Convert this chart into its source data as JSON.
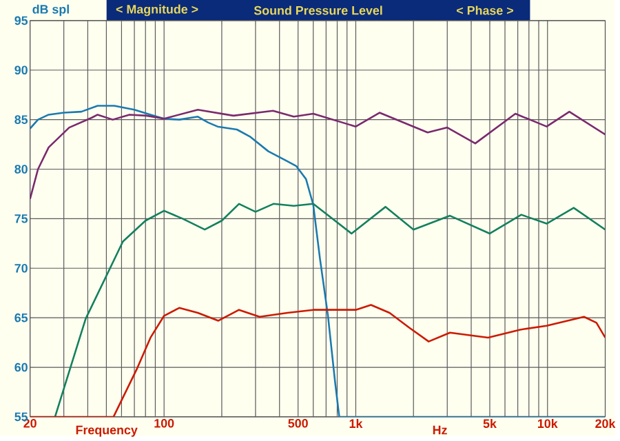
{
  "chart_data": {
    "type": "line",
    "title": "Sound Pressure Level",
    "annotations": [
      "< Magnitude >",
      "< Phase >",
      "dB spl",
      "Frequency",
      "Hz"
    ],
    "log": "x",
    "grid": true,
    "xlim": [
      20,
      20000
    ],
    "ylim": [
      55,
      95
    ],
    "xticks": [
      20,
      {
        "value": 30,
        "label": null
      },
      {
        "value": 40,
        "label": null
      },
      {
        "value": 50,
        "label": null
      },
      {
        "value": 60,
        "label": null
      },
      {
        "value": 70,
        "label": null
      },
      {
        "value": 80,
        "label": null
      },
      {
        "value": 90,
        "label": null
      },
      100,
      {
        "value": 200,
        "label": null
      },
      {
        "value": 300,
        "label": null
      },
      {
        "value": 400,
        "label": null
      },
      500,
      {
        "value": 600,
        "label": null
      },
      {
        "value": 700,
        "label": null
      },
      {
        "value": 800,
        "label": null
      },
      {
        "value": 900,
        "label": null
      },
      {
        "value": 1000,
        "label": "1k"
      },
      {
        "value": 2000,
        "label": null
      },
      {
        "value": 3000,
        "label": null
      },
      {
        "value": 4000,
        "label": null
      },
      {
        "value": 5000,
        "label": "5k"
      },
      {
        "value": 6000,
        "label": null
      },
      {
        "value": 7000,
        "label": null
      },
      {
        "value": 8000,
        "label": null
      },
      {
        "value": 9000,
        "label": null
      },
      {
        "value": 10000,
        "label": "10k"
      },
      {
        "value": 20000,
        "label": "20k"
      }
    ],
    "yticks": [
      55,
      60,
      65,
      70,
      75,
      80,
      85,
      90,
      95
    ],
    "series": [
      {
        "color": "#1a7ab0",
        "x": [
          20,
          22,
          25,
          30,
          37,
          45,
          55,
          70,
          85,
          100,
          120,
          150,
          170,
          190,
          240,
          280,
          350,
          430,
          490,
          550,
          600,
          650,
          715,
          780,
          820,
          20000
        ],
        "values": [
          84.1,
          85,
          85.5,
          85.7,
          85.8,
          86.4,
          86.4,
          86,
          85.5,
          85.1,
          85,
          85.3,
          84.7,
          84.3,
          84,
          83.3,
          81.8,
          80.9,
          80.3,
          79,
          76.4,
          71,
          65.3,
          58.5,
          55,
          55
        ]
      },
      {
        "color": "#7a2a6e",
        "x": [
          20,
          22,
          25,
          32,
          42,
          45,
          54,
          66,
          81,
          100,
          150,
          230,
          370,
          475,
          600,
          1000,
          1330,
          2370,
          3000,
          4200,
          6800,
          9900,
          13000,
          20000
        ],
        "values": [
          77,
          80,
          82.2,
          84.2,
          85.2,
          85.5,
          85,
          85.5,
          85.4,
          85.1,
          86,
          85.4,
          85.9,
          85.3,
          85.6,
          84.3,
          85.7,
          83.7,
          84.2,
          82.6,
          85.6,
          84.3,
          85.8,
          83.5
        ]
      },
      {
        "color": "#13805e",
        "x": [
          27,
          39,
          61,
          80,
          100,
          125,
          163,
          200,
          246,
          300,
          372,
          475,
          600,
          950,
          1430,
          2000,
          3100,
          5000,
          7300,
          9900,
          13700,
          20000
        ],
        "values": [
          55,
          64.9,
          72.7,
          74.8,
          75.8,
          75,
          73.9,
          74.8,
          76.5,
          75.7,
          76.5,
          76.3,
          76.5,
          73.5,
          76.2,
          73.9,
          75.3,
          73.5,
          75.4,
          74.5,
          76.1,
          73.9
        ]
      },
      {
        "color": "#cc1a00",
        "x": [
          20,
          54.5,
          72,
          85,
          100,
          120,
          150,
          192,
          246,
          315,
          440,
          600,
          1000,
          1200,
          1500,
          1900,
          2400,
          3100,
          4900,
          7200,
          9900,
          15500,
          18000,
          20000
        ],
        "values": [
          55,
          55,
          59.8,
          63,
          65.2,
          66,
          65.5,
          64.7,
          65.8,
          65.1,
          65.5,
          65.8,
          65.8,
          66.3,
          65.5,
          64,
          62.6,
          63.5,
          63,
          63.8,
          64.2,
          65.1,
          64.5,
          63
        ]
      }
    ]
  }
}
